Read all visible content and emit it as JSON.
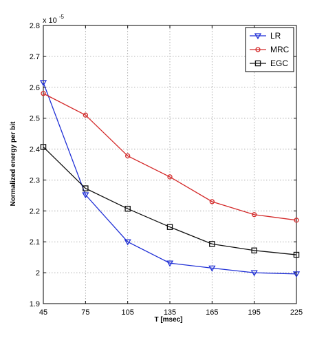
{
  "chart_data": {
    "type": "line",
    "title": "",
    "xlabel": "T [msec]",
    "ylabel": "Normalized energy per bit",
    "x": [
      45,
      75,
      105,
      135,
      165,
      195,
      225
    ],
    "xticks": [
      "45",
      "75",
      "105",
      "135",
      "165",
      "195",
      "225"
    ],
    "xlim": [
      45,
      225
    ],
    "ylim": [
      1.9,
      2.8
    ],
    "yticks": [
      "1.9",
      "2",
      "2.1",
      "2.2",
      "2.3",
      "2.4",
      "2.5",
      "2.6",
      "2.7",
      "2.8"
    ],
    "y_multiplier": "x 10",
    "y_exponent": "-5",
    "grid": true,
    "legend_position": "top-right",
    "series": [
      {
        "name": "LR",
        "color": "#1f2fd6",
        "marker": "triangle-down",
        "values": [
          2.615,
          2.252,
          2.1,
          2.031,
          2.015,
          2.0,
          1.996
        ]
      },
      {
        "name": "MRC",
        "color": "#d42a2a",
        "marker": "circle",
        "values": [
          2.58,
          2.51,
          2.378,
          2.31,
          2.23,
          2.188,
          2.17
        ]
      },
      {
        "name": "EGC",
        "color": "#111111",
        "marker": "square",
        "values": [
          2.407,
          2.273,
          2.207,
          2.148,
          2.093,
          2.072,
          2.058
        ]
      }
    ]
  }
}
